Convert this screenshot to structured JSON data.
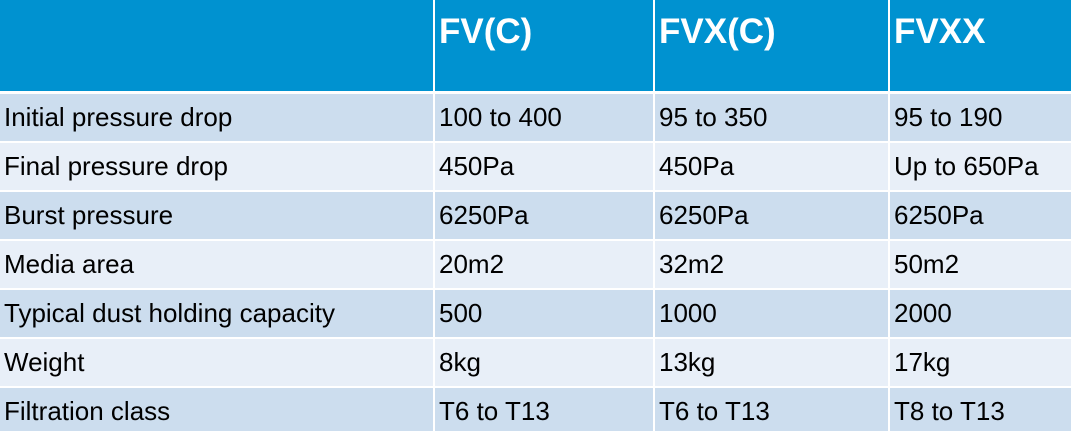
{
  "table": {
    "headers": [
      "",
      "FV(C)",
      "FVX(C)",
      "FVXX"
    ],
    "rows": [
      [
        "Initial pressure drop",
        "100 to 400",
        "95 to 350",
        "95 to 190"
      ],
      [
        "Final pressure drop",
        "450Pa",
        "450Pa",
        "Up to 650Pa"
      ],
      [
        "Burst pressure",
        "6250Pa",
        "6250Pa",
        "6250Pa"
      ],
      [
        "Media area",
        "20m2",
        "32m2",
        "50m2"
      ],
      [
        "Typical dust holding capacity",
        "500",
        "1000",
        "2000"
      ],
      [
        "Weight",
        "8kg",
        "13kg",
        "17kg"
      ],
      [
        "Filtration class",
        "T6 to T13",
        "T6 to T13",
        "T8 to T13"
      ]
    ]
  },
  "colors": {
    "header_bg": "#0092D0",
    "row_odd": "#CCDDEE",
    "row_even": "#E8EFF8"
  }
}
